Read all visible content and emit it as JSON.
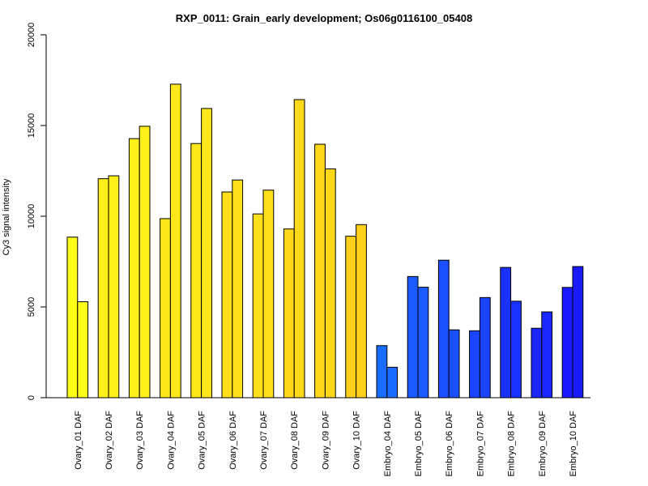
{
  "chart_data": {
    "type": "bar",
    "title": "RXP_0011: Grain_early development; Os06g0116100_05408",
    "xlabel": "",
    "ylabel": "Cy3 signal intensity",
    "ylim": [
      0,
      20000
    ],
    "yticks": [
      0,
      5000,
      10000,
      15000,
      20000
    ],
    "grid": false,
    "categories": [
      "Ovary_01 DAF",
      "Ovary_02 DAF",
      "Ovary_03 DAF",
      "Ovary_04 DAF",
      "Ovary_05 DAF",
      "Ovary_06 DAF",
      "Ovary_07 DAF",
      "Ovary_08 DAF",
      "Ovary_09 DAF",
      "Ovary_10 DAF",
      "Embryo_04 DAF",
      "Embryo_05 DAF",
      "Embryo_06 DAF",
      "Embryo_07 DAF",
      "Embryo_08 DAF",
      "Embryo_09 DAF",
      "Embryo_10 DAF"
    ],
    "series": [
      {
        "values": [
          8850,
          12070,
          14280,
          9870,
          14010,
          11340,
          10130,
          9300,
          13970,
          8900,
          2870,
          6680,
          7580,
          3690,
          7180,
          3830,
          6080
        ]
      },
      {
        "values": [
          5290,
          12230,
          14960,
          17280,
          15940,
          12000,
          11440,
          16430,
          12610,
          9540,
          1680,
          6090,
          3740,
          5520,
          5320,
          4730,
          7230
        ]
      }
    ],
    "colors": [
      "#ffff1a",
      "#ffef1a",
      "#ffef1a",
      "#ffe81a",
      "#ffe81a",
      "#ffe01a",
      "#ffe01a",
      "#ffd81a",
      "#ffd81a",
      "#ffd01a",
      "#1a6bff",
      "#1a5aff",
      "#1a50ff",
      "#1a44ff",
      "#1a32ff",
      "#1a28ff",
      "#1a1aff"
    ]
  }
}
